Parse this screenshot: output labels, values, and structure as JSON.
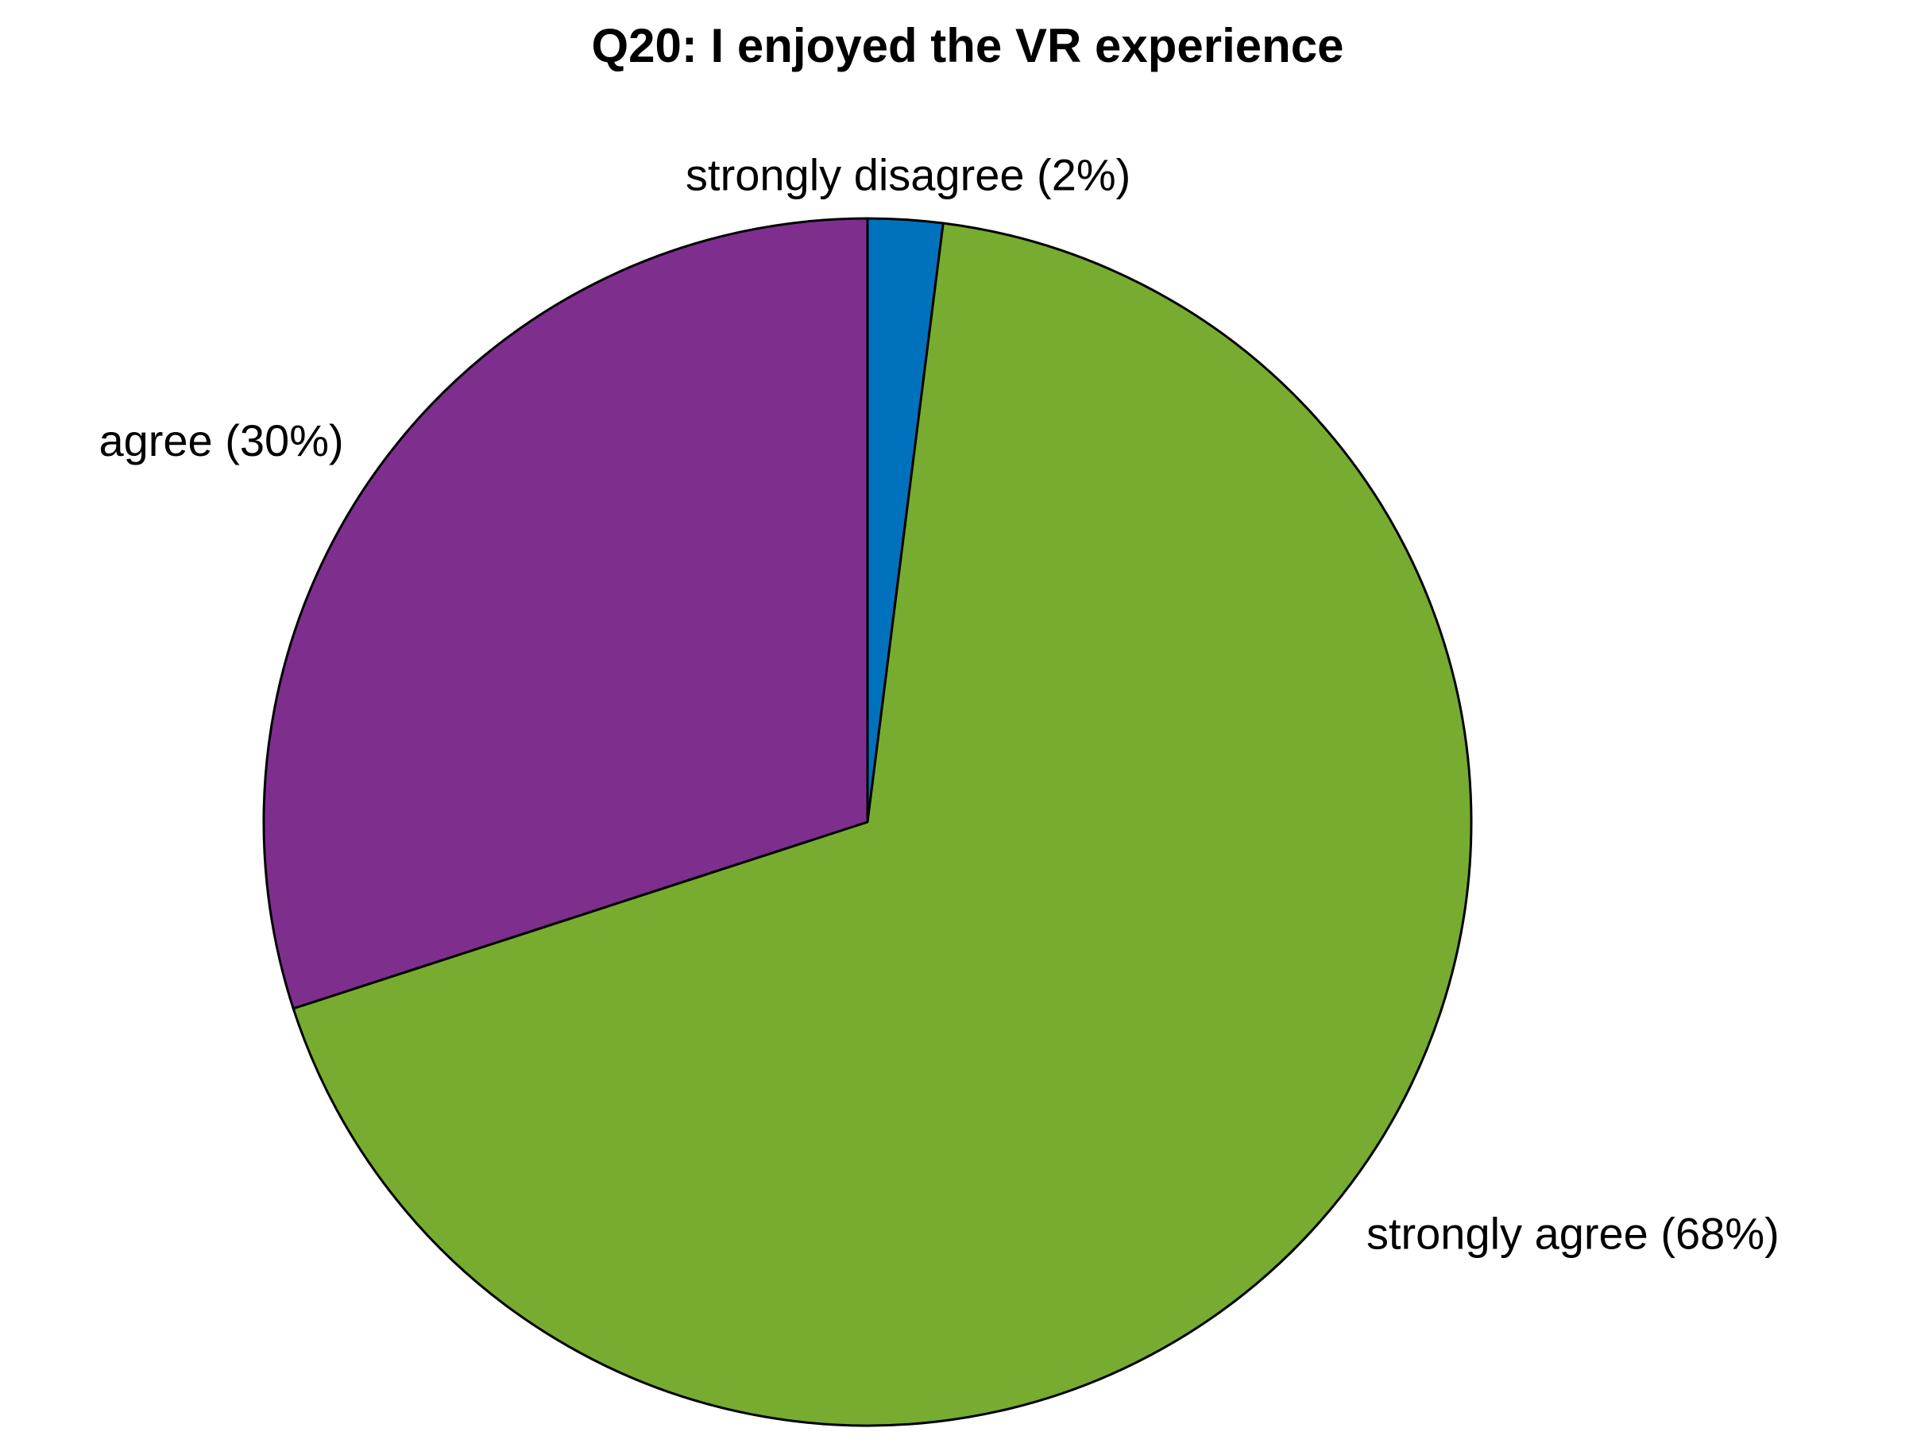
{
  "chart_data": {
    "type": "pie",
    "title": "Q20: I enjoyed the VR experience",
    "slices": [
      {
        "label": "strongly disagree (2%)",
        "category": "strongly disagree",
        "value": 2,
        "color": "#0072BD"
      },
      {
        "label": "strongly agree (68%)",
        "category": "strongly agree",
        "value": 68,
        "color": "#77AC30"
      },
      {
        "label": "agree (30%)",
        "category": "agree",
        "value": 30,
        "color": "#7E2F8E"
      }
    ],
    "start_angle_deg": 90,
    "direction": "clockwise",
    "legend": "none"
  }
}
